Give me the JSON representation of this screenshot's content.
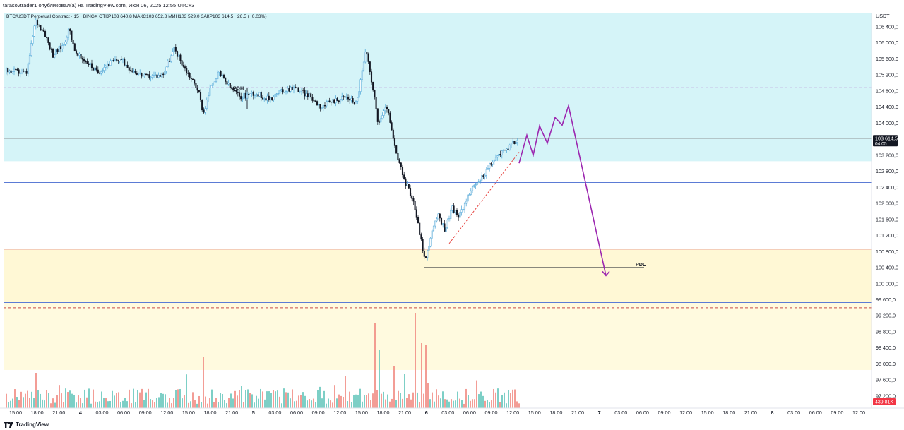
{
  "header": {
    "publisher_line": "tarasovtrader1 опубликовал(а) на TradingView.com, Июн 06, 2025 12:55 UTC+3"
  },
  "footer": {
    "brand": "TradingView",
    "logo_icon": "tradingview-logo-icon"
  },
  "chart_data": {
    "type": "candlestick",
    "symbol_legend": "BTC/USDT Perpetual Contract · 15 · BINGX",
    "ohlc_legend": {
      "open_label": "ОТКР",
      "open": "103 640,8",
      "high_label": "МАКС",
      "high": "103 652,8",
      "low_label": "МИН",
      "low": "103 529,0",
      "close_label": "ЗАКР",
      "close": "103 614,5",
      "change": "−26,5 (−0,03%)"
    },
    "currency": "USDT",
    "y_ticks": [
      "106 400,0",
      "106 000,0",
      "105 600,0",
      "105 200,0",
      "104 800,0",
      "104 400,0",
      "104 000,0",
      "103 600,0",
      "103 200,0",
      "102 800,0",
      "102 400,0",
      "102 000,0",
      "101 600,0",
      "101 200,0",
      "100 800,0",
      "100 400,0",
      "100 000,0",
      "99 600,0",
      "99 200,0",
      "98 800,0",
      "98 400,0",
      "98 000,0",
      "97 600,0",
      "97 200,0"
    ],
    "y_range": [
      96900,
      106750
    ],
    "x_ticks": [
      {
        "label": "15:00",
        "bold": false
      },
      {
        "label": "18:00",
        "bold": false
      },
      {
        "label": "21:00",
        "bold": false
      },
      {
        "label": "4",
        "bold": true
      },
      {
        "label": "03:00",
        "bold": false
      },
      {
        "label": "06:00",
        "bold": false
      },
      {
        "label": "09:00",
        "bold": false
      },
      {
        "label": "12:00",
        "bold": false
      },
      {
        "label": "15:00",
        "bold": false
      },
      {
        "label": "18:00",
        "bold": false
      },
      {
        "label": "21:00",
        "bold": false
      },
      {
        "label": "5",
        "bold": true
      },
      {
        "label": "03:00",
        "bold": false
      },
      {
        "label": "06:00",
        "bold": false
      },
      {
        "label": "09:00",
        "bold": false
      },
      {
        "label": "12:00",
        "bold": false
      },
      {
        "label": "15:00",
        "bold": false
      },
      {
        "label": "18:00",
        "bold": false
      },
      {
        "label": "21:00",
        "bold": false
      },
      {
        "label": "6",
        "bold": true
      },
      {
        "label": "03:00",
        "bold": false
      },
      {
        "label": "06:00",
        "bold": false
      },
      {
        "label": "09:00",
        "bold": false
      },
      {
        "label": "12:00",
        "bold": false
      },
      {
        "label": "15:00",
        "bold": false
      },
      {
        "label": "18:00",
        "bold": false
      },
      {
        "label": "21:00",
        "bold": false
      },
      {
        "label": "7",
        "bold": true
      },
      {
        "label": "03:00",
        "bold": false
      },
      {
        "label": "06:00",
        "bold": false
      },
      {
        "label": "09:00",
        "bold": false
      },
      {
        "label": "12:00",
        "bold": false
      },
      {
        "label": "15:00",
        "bold": false
      },
      {
        "label": "18:00",
        "bold": false
      },
      {
        "label": "21:00",
        "bold": false
      },
      {
        "label": "8",
        "bold": true
      },
      {
        "label": "03:00",
        "bold": false
      },
      {
        "label": "06:00",
        "bold": false
      },
      {
        "label": "09:00",
        "bold": false
      },
      {
        "label": "12:00",
        "bold": false
      }
    ],
    "current_price_badge": {
      "price": "103 614,5",
      "countdown": "04:05",
      "value": 103614.5
    },
    "volume_badge": "439,81K",
    "zones": [
      {
        "name": "premium-zone",
        "from": 103050,
        "to": 106750,
        "color": "#b2ebf2"
      },
      {
        "name": "discount-zone-upper",
        "from": 99530,
        "to": 100860,
        "color": "#fff2b3"
      },
      {
        "name": "discount-zone-lower",
        "from": 97850,
        "to": 99530,
        "color": "#fff6c4"
      }
    ],
    "levels": [
      {
        "name": "pdh-dashed",
        "price": 104880,
        "style": "dashed",
        "color": "#9c27b0"
      },
      {
        "name": "blue-level-1",
        "price": 104350,
        "style": "solid",
        "color": "#5b7bd5"
      },
      {
        "name": "grey-level-current",
        "price": 103614.5,
        "style": "solid",
        "color": "#a8b5b8"
      },
      {
        "name": "blue-level-2",
        "price": 102520,
        "style": "solid",
        "color": "#5b7bd5"
      },
      {
        "name": "red-level",
        "price": 100860,
        "style": "solid",
        "color": "#e0878a"
      },
      {
        "name": "blue-level-3",
        "price": 99530,
        "style": "solid",
        "color": "#5b7bd5"
      },
      {
        "name": "red-dashed",
        "price": 99400,
        "style": "dashed",
        "color": "#c84a4a"
      }
    ],
    "annotations": [
      {
        "text": "PDH",
        "price": 104880
      },
      {
        "text": "PDL",
        "price": 100400
      }
    ],
    "projection_points": [
      [
        103000,
        1
      ],
      [
        103700,
        0
      ],
      [
        103200,
        1
      ],
      [
        103930,
        0
      ],
      [
        103500,
        1
      ],
      [
        104140,
        0
      ],
      [
        103950,
        1
      ],
      [
        104430,
        0
      ],
      [
        100200,
        1
      ]
    ],
    "colors": {
      "up": "#4aa3d6",
      "down": "#131722",
      "vol_up": "#5cc3b8",
      "vol_down": "#f0857c",
      "projection": "#9c27b0",
      "trend_dash": "#e53935"
    }
  }
}
